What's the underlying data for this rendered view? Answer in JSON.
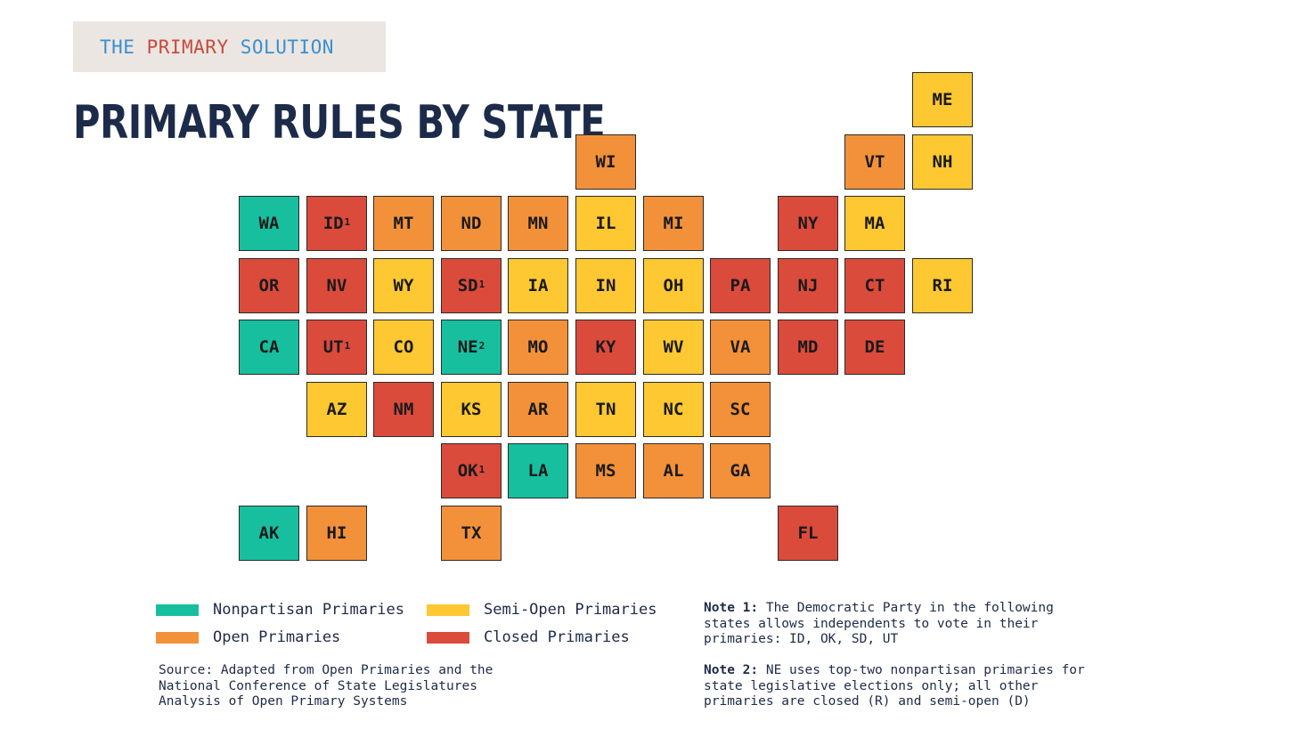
{
  "brand": {
    "word1": "THE",
    "word2": "PRIMARY",
    "word3": "SOLUTION"
  },
  "title": "PRIMARY RULES BY STATE",
  "colors": {
    "nonpartisan": "#17bf9e",
    "semi": "#fdc832",
    "open": "#f29139",
    "closed": "#da4b3c"
  },
  "states": [
    {
      "abbr": "ME",
      "sup": "",
      "type": "semi",
      "col": 10,
      "row": 0
    },
    {
      "abbr": "WI",
      "sup": "",
      "type": "open",
      "col": 5,
      "row": 1
    },
    {
      "abbr": "VT",
      "sup": "",
      "type": "open",
      "col": 9,
      "row": 1
    },
    {
      "abbr": "NH",
      "sup": "",
      "type": "semi",
      "col": 10,
      "row": 1
    },
    {
      "abbr": "WA",
      "sup": "",
      "type": "nonpartisan",
      "col": 0,
      "row": 2
    },
    {
      "abbr": "ID",
      "sup": "1",
      "type": "closed",
      "col": 1,
      "row": 2
    },
    {
      "abbr": "MT",
      "sup": "",
      "type": "open",
      "col": 2,
      "row": 2
    },
    {
      "abbr": "ND",
      "sup": "",
      "type": "open",
      "col": 3,
      "row": 2
    },
    {
      "abbr": "MN",
      "sup": "",
      "type": "open",
      "col": 4,
      "row": 2
    },
    {
      "abbr": "IL",
      "sup": "",
      "type": "semi",
      "col": 5,
      "row": 2
    },
    {
      "abbr": "MI",
      "sup": "",
      "type": "open",
      "col": 6,
      "row": 2
    },
    {
      "abbr": "NY",
      "sup": "",
      "type": "closed",
      "col": 8,
      "row": 2
    },
    {
      "abbr": "MA",
      "sup": "",
      "type": "semi",
      "col": 9,
      "row": 2
    },
    {
      "abbr": "OR",
      "sup": "",
      "type": "closed",
      "col": 0,
      "row": 3
    },
    {
      "abbr": "NV",
      "sup": "",
      "type": "closed",
      "col": 1,
      "row": 3
    },
    {
      "abbr": "WY",
      "sup": "",
      "type": "semi",
      "col": 2,
      "row": 3
    },
    {
      "abbr": "SD",
      "sup": "1",
      "type": "closed",
      "col": 3,
      "row": 3
    },
    {
      "abbr": "IA",
      "sup": "",
      "type": "semi",
      "col": 4,
      "row": 3
    },
    {
      "abbr": "IN",
      "sup": "",
      "type": "semi",
      "col": 5,
      "row": 3
    },
    {
      "abbr": "OH",
      "sup": "",
      "type": "semi",
      "col": 6,
      "row": 3
    },
    {
      "abbr": "PA",
      "sup": "",
      "type": "closed",
      "col": 7,
      "row": 3
    },
    {
      "abbr": "NJ",
      "sup": "",
      "type": "closed",
      "col": 8,
      "row": 3
    },
    {
      "abbr": "CT",
      "sup": "",
      "type": "closed",
      "col": 9,
      "row": 3
    },
    {
      "abbr": "RI",
      "sup": "",
      "type": "semi",
      "col": 10,
      "row": 3
    },
    {
      "abbr": "CA",
      "sup": "",
      "type": "nonpartisan",
      "col": 0,
      "row": 4
    },
    {
      "abbr": "UT",
      "sup": "1",
      "type": "closed",
      "col": 1,
      "row": 4
    },
    {
      "abbr": "CO",
      "sup": "",
      "type": "semi",
      "col": 2,
      "row": 4
    },
    {
      "abbr": "NE",
      "sup": "2",
      "type": "nonpartisan",
      "col": 3,
      "row": 4
    },
    {
      "abbr": "MO",
      "sup": "",
      "type": "open",
      "col": 4,
      "row": 4
    },
    {
      "abbr": "KY",
      "sup": "",
      "type": "closed",
      "col": 5,
      "row": 4
    },
    {
      "abbr": "WV",
      "sup": "",
      "type": "semi",
      "col": 6,
      "row": 4
    },
    {
      "abbr": "VA",
      "sup": "",
      "type": "open",
      "col": 7,
      "row": 4
    },
    {
      "abbr": "MD",
      "sup": "",
      "type": "closed",
      "col": 8,
      "row": 4
    },
    {
      "abbr": "DE",
      "sup": "",
      "type": "closed",
      "col": 9,
      "row": 4
    },
    {
      "abbr": "AZ",
      "sup": "",
      "type": "semi",
      "col": 1,
      "row": 5
    },
    {
      "abbr": "NM",
      "sup": "",
      "type": "closed",
      "col": 2,
      "row": 5
    },
    {
      "abbr": "KS",
      "sup": "",
      "type": "semi",
      "col": 3,
      "row": 5
    },
    {
      "abbr": "AR",
      "sup": "",
      "type": "open",
      "col": 4,
      "row": 5
    },
    {
      "abbr": "TN",
      "sup": "",
      "type": "semi",
      "col": 5,
      "row": 5
    },
    {
      "abbr": "NC",
      "sup": "",
      "type": "semi",
      "col": 6,
      "row": 5
    },
    {
      "abbr": "SC",
      "sup": "",
      "type": "open",
      "col": 7,
      "row": 5
    },
    {
      "abbr": "OK",
      "sup": "1",
      "type": "closed",
      "col": 3,
      "row": 6
    },
    {
      "abbr": "LA",
      "sup": "",
      "type": "nonpartisan",
      "col": 4,
      "row": 6
    },
    {
      "abbr": "MS",
      "sup": "",
      "type": "open",
      "col": 5,
      "row": 6
    },
    {
      "abbr": "AL",
      "sup": "",
      "type": "open",
      "col": 6,
      "row": 6
    },
    {
      "abbr": "GA",
      "sup": "",
      "type": "open",
      "col": 7,
      "row": 6
    },
    {
      "abbr": "AK",
      "sup": "",
      "type": "nonpartisan",
      "col": 0,
      "row": 7
    },
    {
      "abbr": "HI",
      "sup": "",
      "type": "open",
      "col": 1,
      "row": 7
    },
    {
      "abbr": "TX",
      "sup": "",
      "type": "open",
      "col": 3,
      "row": 7
    },
    {
      "abbr": "FL",
      "sup": "",
      "type": "closed",
      "col": 8,
      "row": 7
    }
  ],
  "legend": {
    "nonpartisan": "Nonpartisan Primaries",
    "semi": "Semi-Open Primaries",
    "open": "Open Primaries",
    "closed": "Closed Primaries"
  },
  "source": "Source: Adapted from Open Primaries and the\nNational Conference of State Legislatures\nAnalysis of Open Primary Systems",
  "note1": {
    "label": "Note 1:",
    "text": " The Democratic Party in the following\nstates allows independents to vote in their\nprimaries: ID, OK, SD, UT"
  },
  "note2": {
    "label": "Note 2:",
    "text": " NE uses top-two nonpartisan primaries for\nstate legislative elections only; all other\nprimaries are closed (R) and semi-open (D)"
  }
}
